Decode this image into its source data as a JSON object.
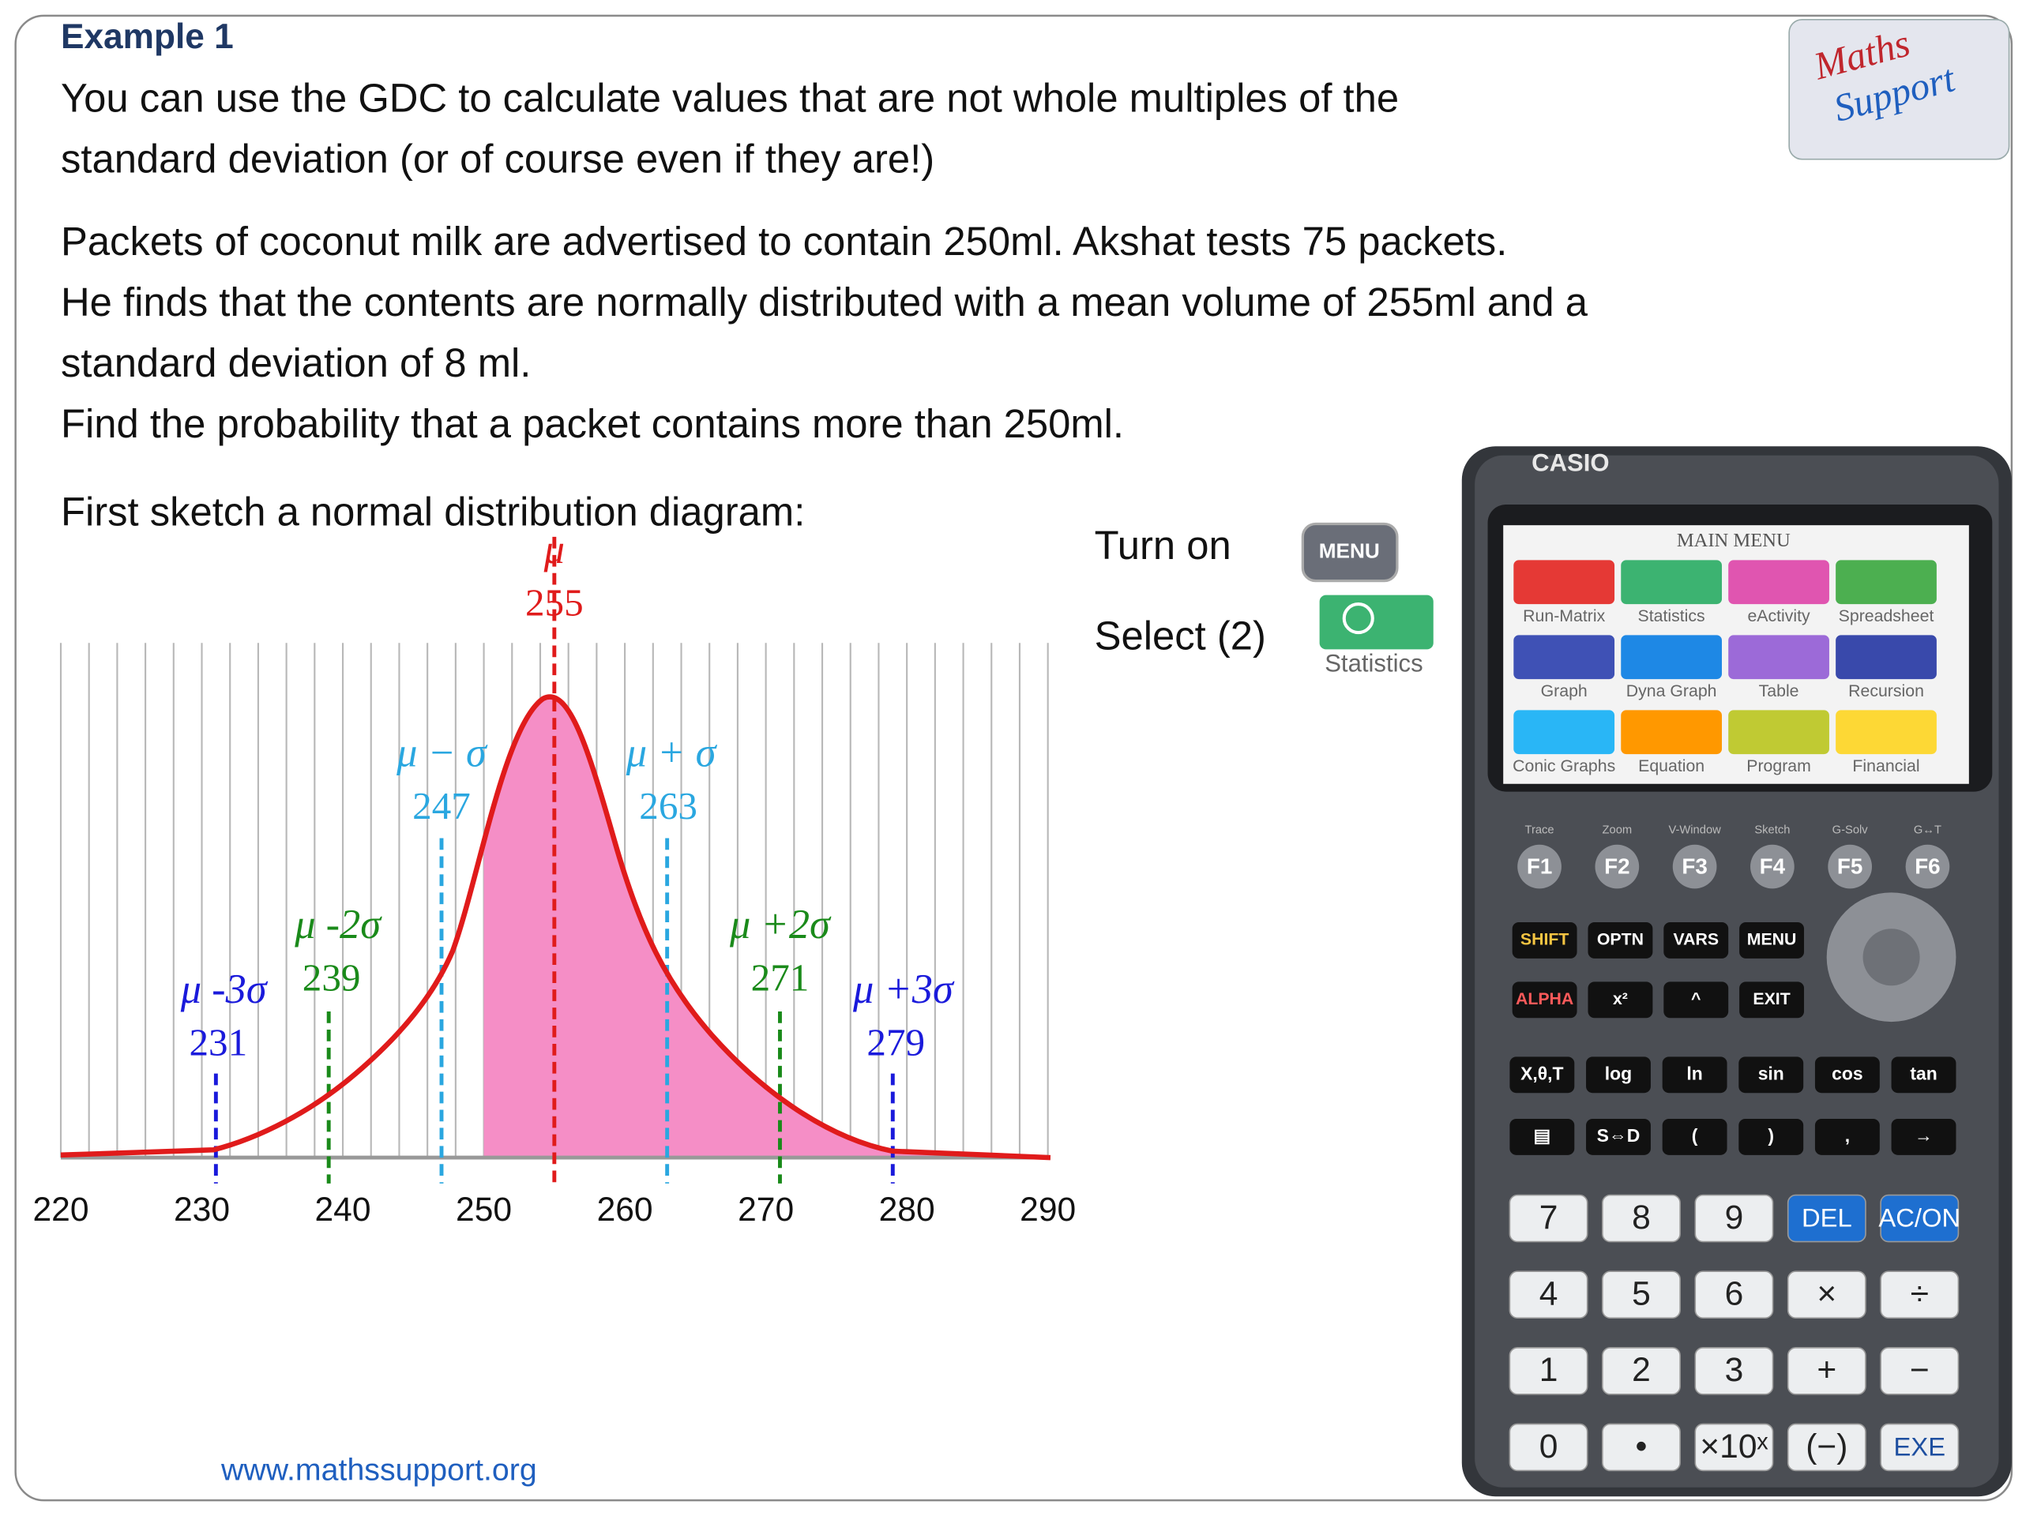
{
  "header": {
    "title": "Example 1"
  },
  "intro": [
    "You can use the GDC to calculate values that are not whole multiples of the",
    "standard deviation (or of course even if they are!)"
  ],
  "problem": [
    "Packets of coconut milk are advertised to contain 250ml.  Akshat tests 75 packets.",
    "He finds that the contents are normally distributed with a mean volume of 255ml and a",
    "standard deviation of 8 ml.",
    "Find the probability that a packet contains more than 250ml."
  ],
  "instruction": "First sketch a normal distribution diagram:",
  "chart_data": {
    "type": "normal-sketch",
    "xlim": [
      220,
      290
    ],
    "xticks": [
      220,
      230,
      240,
      250,
      260,
      270,
      280,
      290
    ],
    "xgrid": [
      220,
      222,
      224,
      226,
      228,
      230,
      232,
      234,
      236,
      238,
      240,
      242,
      244,
      246,
      248,
      250,
      252,
      254,
      256,
      258,
      260,
      262,
      264,
      266,
      268,
      270,
      272,
      274,
      276,
      278,
      280,
      282,
      284,
      286,
      288,
      290
    ],
    "shade_from": 250,
    "markers": [
      {
        "label": "μ -3σ",
        "value": 231,
        "color": "#1a1adb"
      },
      {
        "label": "μ -2σ",
        "value": 239,
        "color": "#1a8a1a"
      },
      {
        "label": "μ − σ",
        "value": 247,
        "color": "#2aa7e0"
      },
      {
        "label": "μ",
        "value": 255,
        "color": "#e01b1b"
      },
      {
        "label": "μ + σ",
        "value": 263,
        "color": "#2aa7e0"
      },
      {
        "label": "μ +2σ",
        "value": 271,
        "color": "#1a8a1a"
      },
      {
        "label": "μ +3σ",
        "value": 279,
        "color": "#1a1adb"
      }
    ]
  },
  "steps": [
    {
      "text": "Turn on",
      "key": "MENU"
    },
    {
      "text": "Select (2)",
      "icon_label": "Statistics"
    }
  ],
  "logo": [
    "Maths",
    "Support"
  ],
  "calculator": {
    "brand": "CASIO",
    "screen_title": "MAIN MENU",
    "apps": [
      {
        "name": "Run-Matrix",
        "color": "#e53935"
      },
      {
        "name": "Statistics",
        "color": "#3cb371"
      },
      {
        "name": "eActivity",
        "color": "#e055b0"
      },
      {
        "name": "Spreadsheet",
        "color": "#4caf50"
      },
      {
        "name": "Graph",
        "color": "#3f51b5"
      },
      {
        "name": "Dyna Graph",
        "color": "#1e88e5"
      },
      {
        "name": "Table",
        "color": "#9c6ad8"
      },
      {
        "name": "Recursion",
        "color": "#3949ab"
      },
      {
        "name": "Conic Graphs",
        "color": "#29b6f6"
      },
      {
        "name": "Equation",
        "color": "#ff9800"
      },
      {
        "name": "Program",
        "color": "#c0ca33"
      },
      {
        "name": "Financial",
        "color": "#fdd835"
      }
    ],
    "f_labels": [
      "Trace",
      "Zoom",
      "V-Window",
      "Sketch",
      "G-Solv",
      "G↔T"
    ],
    "f_keys": [
      "F1",
      "F2",
      "F3",
      "F4",
      "F5",
      "F6"
    ],
    "upper_rows": [
      [
        "SHIFT",
        "OPTN",
        "VARS",
        "MENU"
      ],
      [
        "ALPHA",
        "x²",
        "^",
        "EXIT"
      ]
    ],
    "mid_rows": [
      [
        "X,θ,T",
        "log",
        "ln",
        "sin",
        "cos",
        "tan"
      ],
      [
        "▤",
        "S⇔D",
        "(",
        ")",
        ",",
        "→"
      ]
    ],
    "num_rows": [
      [
        "7",
        "8",
        "9",
        "DEL",
        "AC/ON"
      ],
      [
        "4",
        "5",
        "6",
        "×",
        "÷"
      ],
      [
        "1",
        "2",
        "3",
        "+",
        "−"
      ],
      [
        "0",
        "•",
        "×10ˣ",
        "(−)",
        "EXE"
      ]
    ]
  },
  "footer": "www.mathssupport.org"
}
